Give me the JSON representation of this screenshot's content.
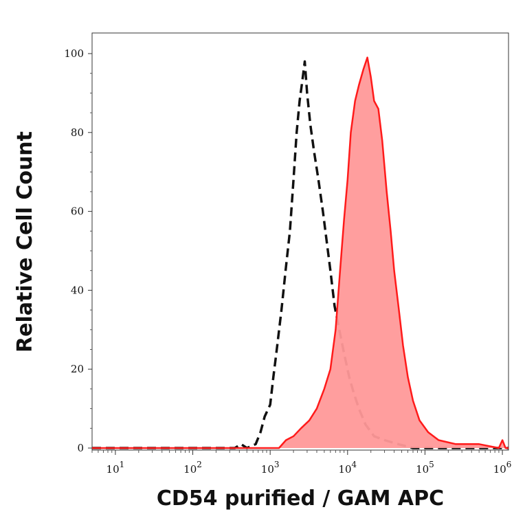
{
  "chart_data": {
    "type": "area",
    "xlabel": "CD54 purified / GAM APC",
    "ylabel": "Relative Cell Count",
    "x_scale": "log",
    "xlim": [
      5,
      1200000
    ],
    "ylim": [
      0,
      100
    ],
    "x_ticks": [
      {
        "value": 10,
        "base": "10",
        "exp": "1"
      },
      {
        "value": 100,
        "base": "10",
        "exp": "2"
      },
      {
        "value": 1000,
        "base": "10",
        "exp": "3"
      },
      {
        "value": 10000,
        "base": "10",
        "exp": "4"
      },
      {
        "value": 100000,
        "base": "10",
        "exp": "5"
      },
      {
        "value": 1000000,
        "base": "10",
        "exp": "6"
      }
    ],
    "y_ticks": [
      0,
      20,
      40,
      60,
      80,
      100
    ],
    "y_tick_labels": [
      "0",
      "20",
      "40",
      "60",
      "80",
      "100"
    ],
    "grid": false,
    "series": [
      {
        "style": "dashed-black",
        "color": "#111111",
        "points": [
          [
            5,
            0
          ],
          [
            350,
            0
          ],
          [
            420,
            1
          ],
          [
            500,
            0
          ],
          [
            650,
            1
          ],
          [
            750,
            4
          ],
          [
            850,
            8
          ],
          [
            1000,
            11
          ],
          [
            1100,
            18
          ],
          [
            1200,
            24
          ],
          [
            1400,
            35
          ],
          [
            1600,
            46
          ],
          [
            1800,
            55
          ],
          [
            2000,
            68
          ],
          [
            2200,
            80
          ],
          [
            2400,
            88
          ],
          [
            2600,
            93
          ],
          [
            2800,
            98
          ],
          [
            3000,
            90
          ],
          [
            3300,
            82
          ],
          [
            3700,
            75
          ],
          [
            4200,
            68
          ],
          [
            4800,
            60
          ],
          [
            5400,
            52
          ],
          [
            6000,
            45
          ],
          [
            6800,
            36
          ],
          [
            7800,
            30
          ],
          [
            9000,
            24
          ],
          [
            10500,
            18
          ],
          [
            12000,
            14
          ],
          [
            14000,
            10
          ],
          [
            17000,
            6
          ],
          [
            22000,
            3
          ],
          [
            30000,
            2
          ],
          [
            45000,
            1
          ],
          [
            70000,
            0
          ],
          [
            1200000,
            0
          ]
        ]
      },
      {
        "style": "filled-red",
        "color": "#ff1a1a",
        "fill": "#ff9999",
        "points": [
          [
            5,
            0
          ],
          [
            1300,
            0
          ],
          [
            1600,
            2
          ],
          [
            2000,
            3
          ],
          [
            2500,
            5
          ],
          [
            3200,
            7
          ],
          [
            4000,
            10
          ],
          [
            5000,
            15
          ],
          [
            6000,
            20
          ],
          [
            7000,
            30
          ],
          [
            8000,
            45
          ],
          [
            9000,
            58
          ],
          [
            10000,
            68
          ],
          [
            11000,
            80
          ],
          [
            12500,
            88
          ],
          [
            14000,
            92
          ],
          [
            16000,
            96
          ],
          [
            18000,
            99
          ],
          [
            20000,
            94
          ],
          [
            22000,
            88
          ],
          [
            25000,
            86
          ],
          [
            28000,
            78
          ],
          [
            32000,
            65
          ],
          [
            36000,
            55
          ],
          [
            40000,
            45
          ],
          [
            46000,
            35
          ],
          [
            52000,
            26
          ],
          [
            60000,
            18
          ],
          [
            70000,
            12
          ],
          [
            85000,
            7
          ],
          [
            110000,
            4
          ],
          [
            150000,
            2
          ],
          [
            250000,
            1
          ],
          [
            500000,
            1
          ],
          [
            900000,
            0
          ],
          [
            1000000,
            2
          ],
          [
            1100000,
            0
          ],
          [
            1200000,
            0
          ]
        ]
      }
    ]
  }
}
